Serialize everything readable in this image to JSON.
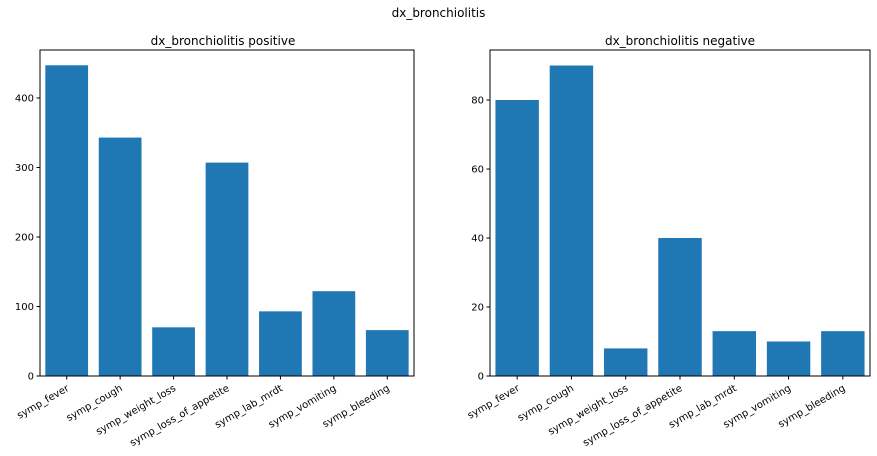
{
  "figure": {
    "suptitle": "dx_bronchiolitis"
  },
  "chart_data": [
    {
      "type": "bar",
      "title": "dx_bronchiolitis positive",
      "xlabel": "",
      "ylabel": "",
      "categories": [
        "symp_fever",
        "symp_cough",
        "symp_weight_loss",
        "symp_loss_of_appetite",
        "symp_lab_mrdt",
        "symp_vomiting",
        "symp_bleeding"
      ],
      "values": [
        447,
        343,
        70,
        307,
        93,
        122,
        66
      ],
      "ylim": [
        0,
        469
      ],
      "yticks": [
        0,
        100,
        200,
        300,
        400
      ],
      "bar_color": "#1f77b4",
      "grid": false
    },
    {
      "type": "bar",
      "title": "dx_bronchiolitis negative",
      "xlabel": "",
      "ylabel": "",
      "categories": [
        "symp_fever",
        "symp_cough",
        "symp_weight_loss",
        "symp_loss_of_appetite",
        "symp_lab_mrdt",
        "symp_vomiting",
        "symp_bleeding"
      ],
      "values": [
        80,
        90,
        8,
        40,
        13,
        10,
        13
      ],
      "ylim": [
        0,
        94.5
      ],
      "yticks": [
        0,
        20,
        40,
        60,
        80
      ],
      "bar_color": "#1f77b4",
      "grid": false
    }
  ]
}
